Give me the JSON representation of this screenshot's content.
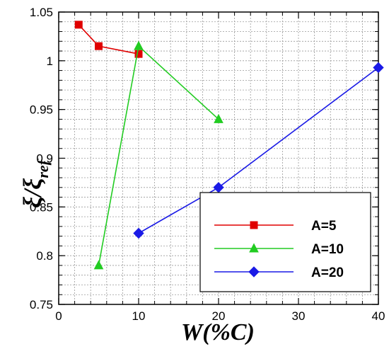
{
  "chart_data": {
    "type": "line",
    "xlabel": "W(%C)",
    "ylabel_main": "ξ/ξ",
    "ylabel_sub": "ref",
    "xlim": [
      0,
      40
    ],
    "ylim": [
      0.75,
      1.05
    ],
    "x_major_ticks": [
      0,
      10,
      20,
      30,
      40
    ],
    "x_tick_labels": [
      "0",
      "10",
      "20",
      "30",
      "40"
    ],
    "y_major_ticks": [
      0.75,
      0.8,
      0.85,
      0.9,
      0.95,
      1.0,
      1.05
    ],
    "y_tick_labels": [
      "0.75",
      "0.8",
      "0.85",
      "0.9",
      "0.95",
      "1",
      "1.05"
    ],
    "x_minor_step": 2,
    "y_minor_step": 0.01,
    "grid": true,
    "legend_position": "bottom-right",
    "series": [
      {
        "name": "A=5",
        "color": "#e00000",
        "marker": "square",
        "x": [
          2.5,
          5,
          10
        ],
        "y": [
          1.037,
          1.015,
          1.007
        ]
      },
      {
        "name": "A=10",
        "color": "#22cc22",
        "marker": "triangle",
        "x": [
          5,
          10,
          20
        ],
        "y": [
          0.79,
          1.015,
          0.94
        ]
      },
      {
        "name": "A=20",
        "color": "#1a1ae6",
        "marker": "diamond",
        "x": [
          10,
          20,
          40
        ],
        "y": [
          0.823,
          0.87,
          0.993
        ]
      }
    ]
  }
}
